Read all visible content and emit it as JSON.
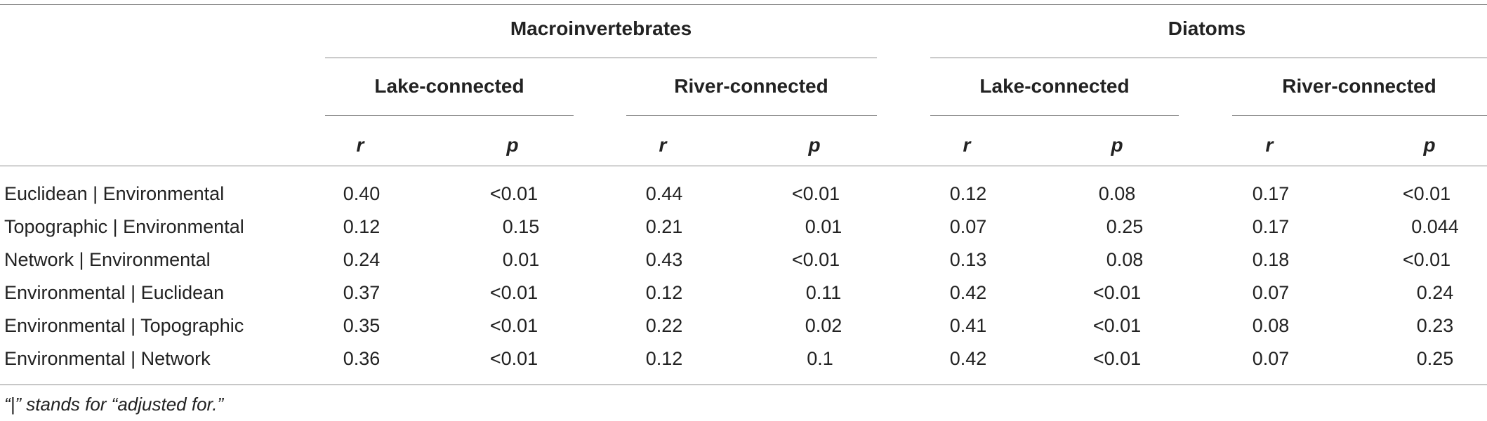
{
  "groups": [
    {
      "label": "Macroinvertebrates",
      "subgroups": [
        {
          "label": "Lake-connected",
          "r": "r",
          "p": "p"
        },
        {
          "label": "River-connected",
          "r": "r",
          "p": "p"
        }
      ]
    },
    {
      "label": "Diatoms",
      "subgroups": [
        {
          "label": "Lake-connected",
          "r": "r",
          "p": "p"
        },
        {
          "label": "River-connected",
          "r": "r",
          "p": "p"
        }
      ]
    }
  ],
  "rows": [
    {
      "label": "Euclidean | Environmental",
      "values": [
        "0.40",
        "<0.01",
        "0.44",
        "<0.01",
        "0.12",
        "0.08",
        "0.17",
        "<0.01"
      ]
    },
    {
      "label": "Topographic | Environmental",
      "values": [
        "0.12",
        "0.15",
        "0.21",
        "0.01",
        "0.07",
        "0.25",
        "0.17",
        "0.044"
      ]
    },
    {
      "label": "Network | Environmental",
      "values": [
        "0.24",
        "0.01",
        "0.43",
        "<0.01",
        "0.13",
        "0.08",
        "0.18",
        "<0.01"
      ]
    },
    {
      "label": "Environmental | Euclidean",
      "values": [
        "0.37",
        "<0.01",
        "0.12",
        "0.11",
        "0.42",
        "<0.01",
        "0.07",
        "0.24"
      ]
    },
    {
      "label": "Environmental | Topographic",
      "values": [
        "0.35",
        "<0.01",
        "0.22",
        "0.02",
        "0.41",
        "<0.01",
        "0.08",
        "0.23"
      ]
    },
    {
      "label": "Environmental | Network",
      "values": [
        "0.36",
        "<0.01",
        "0.12",
        "0.1",
        "0.42",
        "<0.01",
        "0.07",
        "0.25"
      ]
    }
  ],
  "footnote": "“|” stands for “adjusted for.”"
}
